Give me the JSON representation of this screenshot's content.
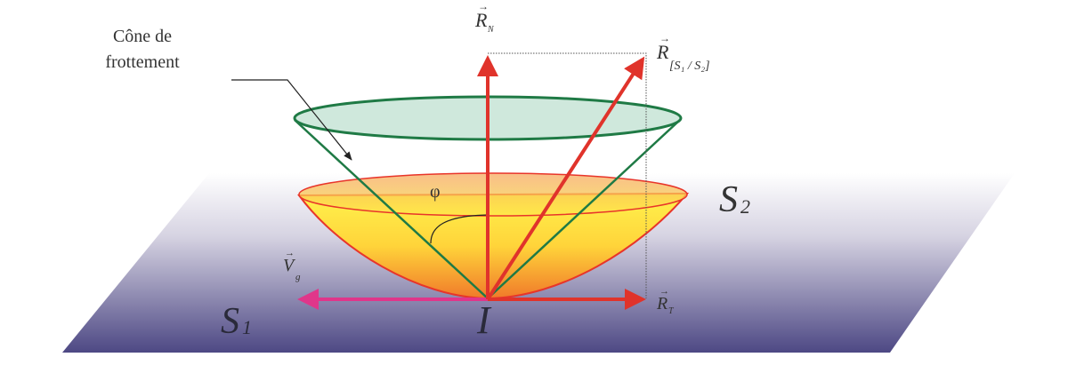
{
  "labels": {
    "cone_line1": "Cône de",
    "cone_line2": "frottement",
    "rn_main": "R",
    "rn_sub": "N",
    "rs_main": "R",
    "rs_sub": "[S₁ / S₂]",
    "rt_main": "R",
    "rt_sub": "T",
    "vg_main": "V",
    "vg_sub": "g",
    "phi": "φ",
    "s1_main": "S",
    "s1_sub": "1",
    "s2_main": "S",
    "s2_sub": "2",
    "point": "I"
  },
  "colors": {
    "plane_top": "#ffffff",
    "plane_bottom": "#4d4884",
    "friction_cone": "#1f7a45",
    "friction_cone_fill": "#cfe8dc",
    "bowl_edge": "#e8352a",
    "bowl_top": "#fff04a",
    "bowl_bottom": "#f07a2a",
    "reaction_arrows": "#e0332b",
    "velocity_arrow": "#e0368a"
  }
}
